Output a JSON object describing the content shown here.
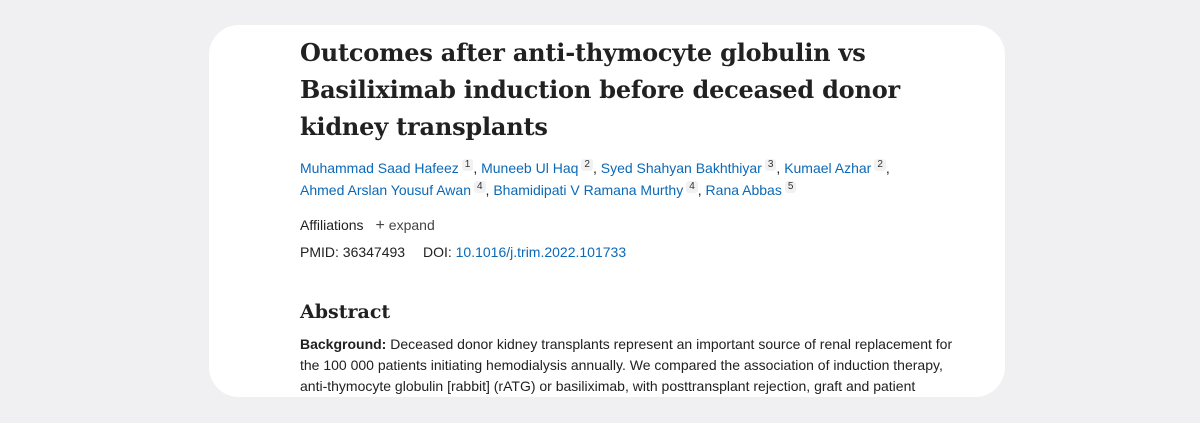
{
  "article": {
    "title": "Outcomes after anti-thymocyte globulin vs Basiliximab induction before deceased donor kidney transplants",
    "authors": [
      {
        "name": "Muhammad Saad Hafeez",
        "aff": "1"
      },
      {
        "name": "Muneeb Ul Haq",
        "aff": "2"
      },
      {
        "name": "Syed Shahyan Bakhthiyar",
        "aff": "3"
      },
      {
        "name": "Kumael Azhar",
        "aff": "2"
      },
      {
        "name": "Ahmed Arslan Yousuf Awan",
        "aff": "4"
      },
      {
        "name": "Bhamidipati V Ramana Murthy",
        "aff": "4"
      },
      {
        "name": "Rana Abbas",
        "aff": "5"
      }
    ],
    "affiliations_label": "Affiliations",
    "expand_icon": "plus-icon",
    "expand_label": "expand",
    "pmid_label": "PMID:",
    "pmid": "36347493",
    "doi_label": "DOI:",
    "doi": "10.1016/j.trim.2022.101733"
  },
  "abstract": {
    "heading": "Abstract",
    "background_label": "Background:",
    "background_text": "Deceased donor kidney transplants represent an important source of renal replacement for the 100 000 patients initiating hemodialysis annually. We compared the association of induction therapy, anti-thymocyte globulin [rabbit] (rATG) or basiliximab, with posttransplant rejection, graft and patient survival."
  }
}
